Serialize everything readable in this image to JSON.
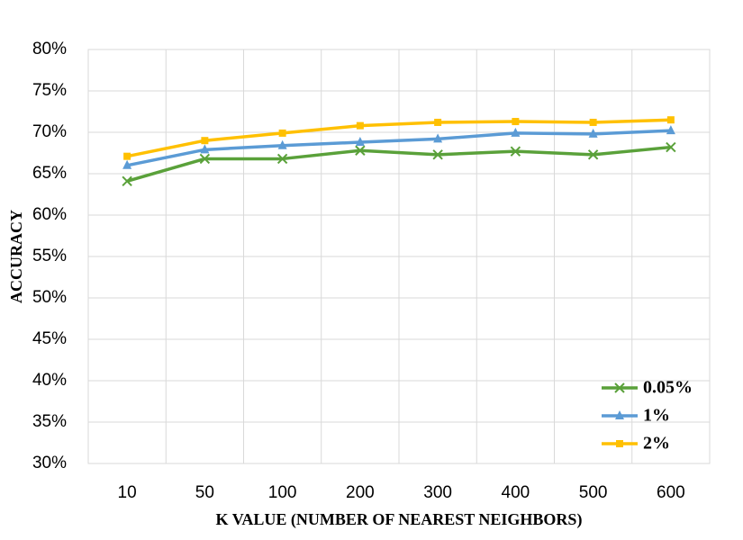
{
  "chart_data": {
    "type": "line",
    "x_label": "K VALUE (NUMBER OF NEAREST NEIGHBORS)",
    "y_label": "ACCURACY",
    "categories": [
      "10",
      "50",
      "100",
      "200",
      "300",
      "400",
      "500",
      "600"
    ],
    "series": [
      {
        "name": "0.05%",
        "color": "#5aa13a",
        "marker": "x",
        "values": [
          64.1,
          66.8,
          66.8,
          67.8,
          67.3,
          67.7,
          67.3,
          68.2
        ]
      },
      {
        "name": "1%",
        "color": "#5b9bd5",
        "marker": "triangle",
        "values": [
          66.0,
          67.9,
          68.4,
          68.8,
          69.2,
          69.9,
          69.8,
          70.2
        ]
      },
      {
        "name": "2%",
        "color": "#ffc000",
        "marker": "square",
        "values": [
          67.1,
          69.0,
          69.9,
          70.8,
          71.2,
          71.3,
          71.2,
          71.5
        ]
      }
    ],
    "ylim": [
      30,
      80
    ],
    "yticks": [
      {
        "value": 30,
        "label": "30%"
      },
      {
        "value": 35,
        "label": "35%"
      },
      {
        "value": 40,
        "label": "40%"
      },
      {
        "value": 45,
        "label": "45%"
      },
      {
        "value": 50,
        "label": "50%"
      },
      {
        "value": 55,
        "label": "55%"
      },
      {
        "value": 60,
        "label": "60%"
      },
      {
        "value": 65,
        "label": "65%"
      },
      {
        "value": 70,
        "label": "70%"
      },
      {
        "value": 75,
        "label": "75%"
      },
      {
        "value": 80,
        "label": "80%"
      }
    ],
    "grid": true,
    "legend": "lower right"
  }
}
